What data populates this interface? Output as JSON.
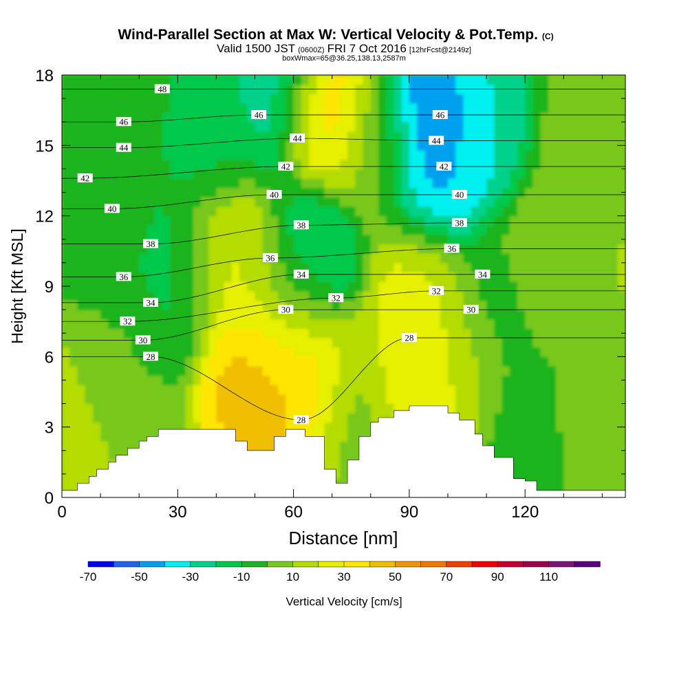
{
  "chart_data": {
    "type": "heatmap",
    "title": "Wind-Parallel Section at Max W: Vertical Velocity & Pot.Temp.",
    "title_mark": "(C)",
    "subtitle": {
      "valid": "Valid 1500 JST",
      "utc": "(0600Z)",
      "date": "FRI 7 Oct 2016",
      "forecast": "[12hrFcst@2149z]"
    },
    "box_info": "boxWmax=65@36.25,138.13,2587m",
    "xlabel": "Distance [nm]",
    "ylabel": "Height [Kft MSL]",
    "xlim": [
      0,
      146
    ],
    "ylim": [
      0,
      18
    ],
    "xticks": [
      "0",
      "30",
      "60",
      "90",
      "120"
    ],
    "yticks": [
      "0",
      "3",
      "6",
      "9",
      "12",
      "15",
      "18"
    ],
    "colorbar": {
      "label": "Vertical Velocity [cm/s]",
      "tick_labels": [
        "-70",
        "-50",
        "-30",
        "-10",
        "10",
        "30",
        "50",
        "70",
        "90",
        "110"
      ],
      "colors": [
        "#0000f0",
        "#1e64f0",
        "#00a0f0",
        "#00f0f0",
        "#00d28c",
        "#00c84b",
        "#1eb41e",
        "#78c81e",
        "#b4dc00",
        "#e6f000",
        "#ffe600",
        "#f0be00",
        "#f09600",
        "#f07800",
        "#f04000",
        "#f00000",
        "#c80032",
        "#a0004b",
        "#7d1478",
        "#5a007d"
      ]
    },
    "terrain_profile": {
      "x_nm": [
        0,
        4,
        4,
        7,
        7,
        9,
        9,
        12,
        12,
        14,
        14,
        17,
        17,
        20,
        20,
        22,
        22,
        25,
        25,
        30,
        30,
        45,
        45,
        48,
        48,
        55,
        55,
        58,
        58,
        63,
        63,
        65,
        65,
        68,
        68,
        71,
        71,
        74,
        74,
        77,
        77,
        80,
        80,
        82,
        82,
        86,
        86,
        90,
        90,
        93,
        93,
        100,
        100,
        103,
        103,
        107,
        107,
        109,
        109,
        112,
        112,
        117,
        117,
        120,
        120,
        123,
        123,
        125,
        125,
        146
      ],
      "h_kft": [
        0.3,
        0.3,
        0.6,
        0.6,
        0.9,
        0.9,
        1.2,
        1.2,
        1.5,
        1.5,
        1.8,
        1.8,
        2.1,
        2.1,
        2.4,
        2.4,
        2.6,
        2.6,
        2.9,
        2.9,
        2.9,
        2.9,
        2.4,
        2.4,
        2.0,
        2.0,
        2.6,
        2.6,
        2.9,
        2.9,
        2.6,
        2.6,
        2.6,
        2.6,
        1.2,
        1.2,
        0.6,
        0.6,
        1.6,
        1.6,
        2.6,
        2.6,
        3.2,
        3.2,
        3.4,
        3.4,
        3.7,
        3.7,
        3.9,
        3.9,
        3.9,
        3.9,
        3.6,
        3.6,
        3.3,
        3.3,
        2.7,
        2.7,
        2.2,
        2.2,
        1.7,
        1.7,
        0.8,
        0.8,
        0.7,
        0.7,
        0.3,
        0.3,
        0.3,
        0.3
      ]
    },
    "w_cells": [
      {
        "x": 5,
        "y": 3,
        "w": 15
      },
      {
        "x": 15,
        "y": 5,
        "w": 0
      },
      {
        "x": 12,
        "y": 12,
        "w": -8
      },
      {
        "x": 10,
        "y": 16,
        "w": -5
      },
      {
        "x": 28,
        "y": 10,
        "w": -12
      },
      {
        "x": 40,
        "y": 15.5,
        "w": -15
      },
      {
        "x": 44,
        "y": 10.5,
        "w": 22
      },
      {
        "x": 52,
        "y": 5.2,
        "w": 45
      },
      {
        "x": 64,
        "y": 5.4,
        "w": 40
      },
      {
        "x": 55,
        "y": 17.5,
        "w": -28
      },
      {
        "x": 68,
        "y": 16.5,
        "w": 38
      },
      {
        "x": 64,
        "y": 10,
        "w": -28
      },
      {
        "x": 58,
        "y": 8.5,
        "w": 15
      },
      {
        "x": 76,
        "y": 4,
        "w": 5
      },
      {
        "x": 82,
        "y": 15,
        "w": 5
      },
      {
        "x": 91,
        "y": 5.5,
        "w": 32
      },
      {
        "x": 93,
        "y": 8.5,
        "w": 22
      },
      {
        "x": 95,
        "y": 16,
        "w": -55
      },
      {
        "x": 98,
        "y": 14,
        "w": -40
      },
      {
        "x": 110,
        "y": 16,
        "w": -30
      },
      {
        "x": 104,
        "y": 6,
        "w": 18
      },
      {
        "x": 112,
        "y": 8,
        "w": -8
      },
      {
        "x": 125,
        "y": 10,
        "w": 10
      },
      {
        "x": 133,
        "y": 15,
        "w": 5
      },
      {
        "x": 140,
        "y": 3.5,
        "w": 8
      },
      {
        "x": 120,
        "y": 3,
        "w": -5
      }
    ],
    "theta_isentropes": [
      {
        "value": 28,
        "labels": [
          [
            23,
            6.0
          ],
          [
            62,
            3.3
          ],
          [
            90,
            6.8
          ]
        ]
      },
      {
        "value": 30,
        "labels": [
          [
            21,
            6.7
          ],
          [
            58,
            8.0
          ],
          [
            106,
            8.0
          ]
        ]
      },
      {
        "value": 32,
        "labels": [
          [
            17,
            7.5
          ],
          [
            71,
            8.5
          ],
          [
            97,
            8.8
          ]
        ]
      },
      {
        "value": 34,
        "labels": [
          [
            23,
            8.3
          ],
          [
            62,
            9.5
          ],
          [
            109,
            9.5
          ]
        ]
      },
      {
        "value": 36,
        "labels": [
          [
            16,
            9.4
          ],
          [
            54,
            10.2
          ],
          [
            101,
            10.6
          ]
        ]
      },
      {
        "value": 38,
        "labels": [
          [
            23,
            10.8
          ],
          [
            62,
            11.6
          ],
          [
            103,
            11.7
          ]
        ]
      },
      {
        "value": 40,
        "labels": [
          [
            13,
            12.3
          ],
          [
            55,
            12.9
          ],
          [
            103,
            12.9
          ]
        ]
      },
      {
        "value": 42,
        "labels": [
          [
            6,
            13.6
          ],
          [
            58,
            14.1
          ],
          [
            99,
            14.1
          ]
        ]
      },
      {
        "value": 44,
        "labels": [
          [
            16,
            14.9
          ],
          [
            61,
            15.3
          ],
          [
            97,
            15.2
          ]
        ]
      },
      {
        "value": 46,
        "labels": [
          [
            16,
            16.0
          ],
          [
            51,
            16.3
          ],
          [
            98,
            16.3
          ]
        ]
      },
      {
        "value": 48,
        "labels": [
          [
            26,
            17.4
          ]
        ]
      }
    ]
  }
}
